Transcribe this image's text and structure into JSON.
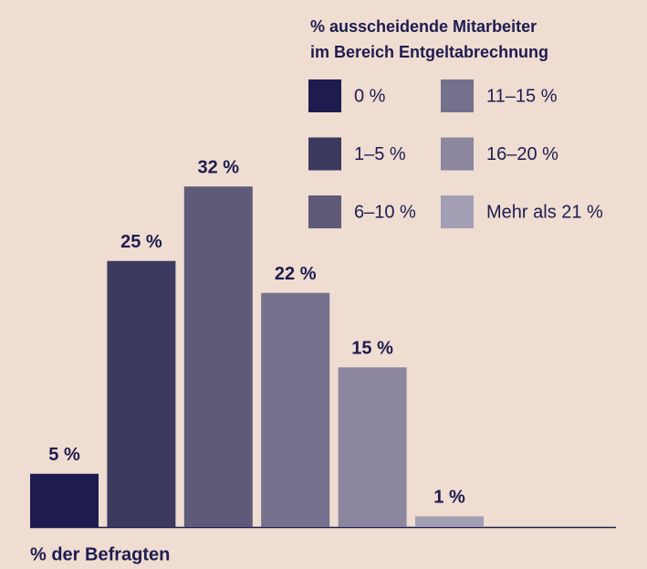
{
  "chart_data": {
    "type": "bar",
    "legend_title": [
      "% ausscheidende Mitarbeiter",
      "im Bereich Entgeltabrechnung"
    ],
    "x_label": "% der Befragten",
    "categories": [
      "0 %",
      "1–5 %",
      "6–10 %",
      "11–15 %",
      "16–20 %",
      "Mehr als 21 %"
    ],
    "values": [
      5,
      25,
      32,
      22,
      15,
      1
    ],
    "value_labels": [
      "5 %",
      "25 %",
      "32 %",
      "22 %",
      "15 %",
      "1 %"
    ],
    "colors": [
      "#1e1c4f",
      "#3d3a60",
      "#5e5a78",
      "#75708c",
      "#8c879f",
      "#a29eb3"
    ]
  }
}
